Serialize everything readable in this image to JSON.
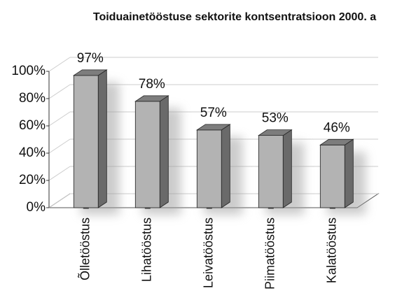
{
  "chart_data": {
    "type": "bar3d",
    "title": "Toiduainetööstuse sektorite kontsentratsioon 2000. a",
    "categories": [
      "Õlletööstus",
      "Lihatööstus",
      "Leivatööstus",
      "Piimatööstus",
      "Kalatööstus"
    ],
    "values": [
      97,
      78,
      57,
      53,
      46
    ],
    "value_labels": [
      "97%",
      "78%",
      "57%",
      "53%",
      "46%"
    ],
    "color": "#b3b3b3",
    "ylim": [
      0,
      100
    ],
    "yticks": [
      {
        "value": 0,
        "label": "0%"
      },
      {
        "value": 20,
        "label": "20%"
      },
      {
        "value": 40,
        "label": "40%"
      },
      {
        "value": 60,
        "label": "60%"
      },
      {
        "value": 80,
        "label": "80%"
      },
      {
        "value": 100,
        "label": "100%"
      }
    ],
    "grid": true
  }
}
